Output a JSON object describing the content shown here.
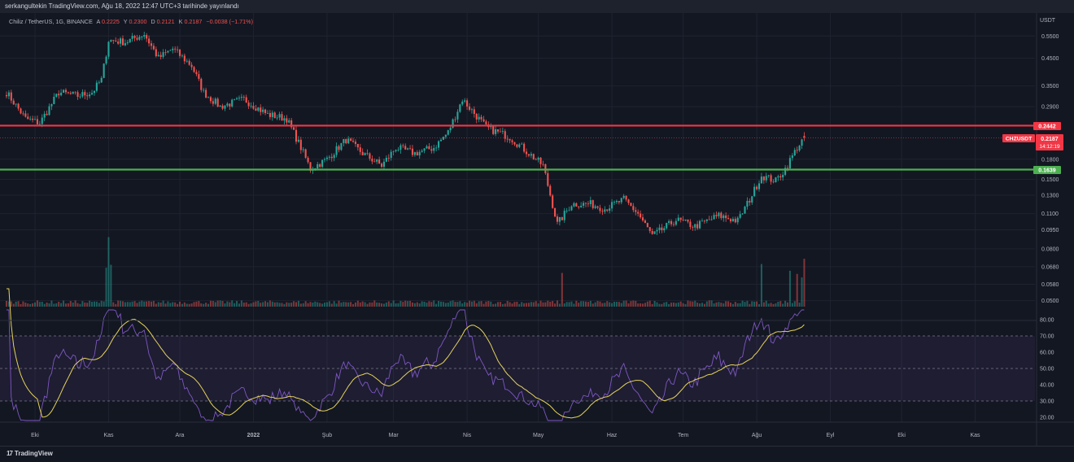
{
  "header": {
    "publish_info": "serkangultekin TradingView.com, Ağu 18, 2022 12:47 UTC+3 tarihinde yayınlandı"
  },
  "legend": {
    "symbol": "Chiliz / TetherUS, 1G, BINANCE",
    "o_label": "A",
    "o_value": "0.2225",
    "h_label": "Y",
    "h_value": "0.2300",
    "l_label": "D",
    "l_value": "0.2121",
    "c_label": "K",
    "c_value": "0.2187",
    "change": "−0.0038 (−1.71%)"
  },
  "footer": {
    "brand": "TradingView",
    "logo_glyph": "17"
  },
  "colors": {
    "background": "#131722",
    "up": "#26a69a",
    "down": "#ef5350",
    "resistance": "#f23645",
    "support": "#4caf50",
    "rsi_line": "#7e57c2",
    "rsi_ma": "#e6d35a",
    "rsi_band": "#7e57c2",
    "text": "#b2b5be"
  },
  "chart_data": [
    {
      "type": "candlestick",
      "title": "",
      "currency_label": "USDT",
      "scale": "log",
      "ylim": [
        0.047,
        0.62
      ],
      "y_ticks": [
        {
          "value": 0.55,
          "label": "0.5500"
        },
        {
          "value": 0.45,
          "label": "0.4500"
        },
        {
          "value": 0.35,
          "label": "0.3500"
        },
        {
          "value": 0.29,
          "label": "0.2900"
        },
        {
          "value": 0.18,
          "label": "0.1800"
        },
        {
          "value": 0.15,
          "label": "0.1500"
        },
        {
          "value": 0.13,
          "label": "0.1300"
        },
        {
          "value": 0.11,
          "label": "0.1100"
        },
        {
          "value": 0.095,
          "label": "0.0950"
        },
        {
          "value": 0.08,
          "label": "0.0800"
        },
        {
          "value": 0.068,
          "label": "0.0680"
        },
        {
          "value": 0.058,
          "label": "0.0580"
        },
        {
          "value": 0.05,
          "label": "0.0500"
        }
      ],
      "x_labels": [
        {
          "index": 12,
          "label": "Eki"
        },
        {
          "index": 43,
          "label": "Kas"
        },
        {
          "index": 73,
          "label": "Ara"
        },
        {
          "index": 104,
          "label": "2022"
        },
        {
          "index": 135,
          "label": "Şub"
        },
        {
          "index": 163,
          "label": "Mar"
        },
        {
          "index": 194,
          "label": "Nis"
        },
        {
          "index": 224,
          "label": "May"
        },
        {
          "index": 255,
          "label": "Haz"
        },
        {
          "index": 285,
          "label": "Tem"
        },
        {
          "index": 316,
          "label": "Ağu"
        },
        {
          "index": 347,
          "label": "Eyl"
        },
        {
          "index": 377,
          "label": "Eki"
        },
        {
          "index": 408,
          "label": "Kas"
        }
      ],
      "x_range": [
        0,
        441
      ],
      "candles": {
        "start_index": 0,
        "close_anchors": [
          [
            0,
            0.33
          ],
          [
            8,
            0.26
          ],
          [
            14,
            0.25
          ],
          [
            22,
            0.33
          ],
          [
            30,
            0.32
          ],
          [
            36,
            0.33
          ],
          [
            40,
            0.37
          ],
          [
            43,
            0.53
          ],
          [
            50,
            0.52
          ],
          [
            58,
            0.56
          ],
          [
            64,
            0.45
          ],
          [
            70,
            0.49
          ],
          [
            78,
            0.42
          ],
          [
            83,
            0.33
          ],
          [
            90,
            0.29
          ],
          [
            100,
            0.31
          ],
          [
            110,
            0.27
          ],
          [
            118,
            0.26
          ],
          [
            124,
            0.2
          ],
          [
            128,
            0.165
          ],
          [
            135,
            0.18
          ],
          [
            143,
            0.215
          ],
          [
            150,
            0.19
          ],
          [
            158,
            0.17
          ],
          [
            164,
            0.2
          ],
          [
            172,
            0.19
          ],
          [
            180,
            0.2
          ],
          [
            186,
            0.23
          ],
          [
            192,
            0.31
          ],
          [
            196,
            0.28
          ],
          [
            202,
            0.24
          ],
          [
            212,
            0.22
          ],
          [
            220,
            0.19
          ],
          [
            226,
            0.17
          ],
          [
            232,
            0.1
          ],
          [
            238,
            0.12
          ],
          [
            246,
            0.12
          ],
          [
            252,
            0.115
          ],
          [
            260,
            0.125
          ],
          [
            266,
            0.11
          ],
          [
            272,
            0.09
          ],
          [
            276,
            0.095
          ],
          [
            282,
            0.104
          ],
          [
            290,
            0.098
          ],
          [
            300,
            0.108
          ],
          [
            308,
            0.103
          ],
          [
            313,
            0.125
          ],
          [
            318,
            0.155
          ],
          [
            324,
            0.148
          ],
          [
            328,
            0.165
          ],
          [
            333,
            0.2
          ],
          [
            336,
            0.2187
          ]
        ],
        "last": {
          "open": 0.2225,
          "high": 0.23,
          "low": 0.2121,
          "close": 0.2187
        }
      },
      "volume": {
        "spike_indices": [
          42,
          43,
          44,
          234,
          318,
          330,
          333,
          335,
          336
        ]
      },
      "horizontal_levels": [
        {
          "name": "resistance",
          "value": 0.2442,
          "label": "0.2442",
          "color": "#f23645"
        },
        {
          "name": "support",
          "value": 0.1639,
          "label": "0.1639",
          "color": "#4caf50"
        }
      ],
      "price_tag": {
        "symbol": "CHZUSDT",
        "value": 0.2187,
        "label": "0.2187",
        "countdown": "14:12:19"
      }
    },
    {
      "type": "line",
      "title": "",
      "ylim": [
        17,
        87
      ],
      "y_ticks": [
        {
          "value": 80,
          "label": "80.00"
        },
        {
          "value": 70,
          "label": "70.00"
        },
        {
          "value": 60,
          "label": "60.00"
        },
        {
          "value": 50,
          "label": "50.00"
        },
        {
          "value": 40,
          "label": "40.00"
        },
        {
          "value": 30,
          "label": "30.00"
        },
        {
          "value": 20,
          "label": "20.00"
        }
      ],
      "band": [
        30,
        70
      ],
      "midline": 50
    }
  ]
}
